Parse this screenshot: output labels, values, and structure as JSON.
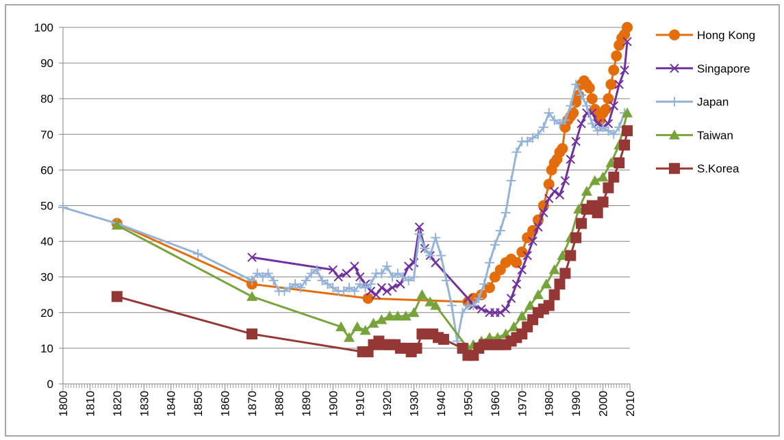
{
  "chart_data": {
    "type": "line",
    "xlim": [
      1800,
      2010
    ],
    "xticks": [
      1800,
      1810,
      1820,
      1830,
      1840,
      1850,
      1860,
      1870,
      1880,
      1890,
      1900,
      1910,
      1920,
      1930,
      1940,
      1950,
      1960,
      1970,
      1980,
      1990,
      2000,
      2010
    ],
    "ylim": [
      0,
      100
    ],
    "yticks": [
      0,
      10,
      20,
      30,
      40,
      50,
      60,
      70,
      80,
      90,
      100
    ],
    "grid": true,
    "legend": "right",
    "series": [
      {
        "name": "Hong Kong",
        "color": "#e46c0a",
        "marker": "circle",
        "x": [
          1820,
          1870,
          1913,
          1950,
          1952,
          1955,
          1958,
          1960,
          1962,
          1964,
          1966,
          1968,
          1970,
          1972,
          1974,
          1976,
          1978,
          1980,
          1981,
          1982,
          1983,
          1984,
          1985,
          1986,
          1987,
          1988,
          1989,
          1990,
          1991,
          1992,
          1993,
          1994,
          1995,
          1996,
          1997,
          1998,
          1999,
          2000,
          2001,
          2002,
          2003,
          2004,
          2005,
          2006,
          2007,
          2008,
          2009
        ],
        "values": [
          45,
          28,
          24,
          23,
          24,
          25,
          27,
          30,
          32,
          34,
          35,
          34,
          37,
          41,
          43,
          46,
          50,
          56,
          60,
          62,
          63,
          65,
          66,
          72,
          74,
          75,
          76,
          79,
          81,
          84,
          85,
          84,
          83,
          80,
          77,
          76,
          74,
          76,
          77,
          80,
          84,
          88,
          92,
          95,
          97,
          98,
          100
        ]
      },
      {
        "name": "Singapore",
        "color": "#7030a0",
        "marker": "cross",
        "x": [
          1870,
          1900,
          1902,
          1905,
          1908,
          1910,
          1912,
          1914,
          1916,
          1918,
          1920,
          1922,
          1925,
          1928,
          1930,
          1932,
          1934,
          1936,
          1938,
          1950,
          1952,
          1955,
          1958,
          1960,
          1962,
          1964,
          1966,
          1968,
          1970,
          1972,
          1974,
          1976,
          1978,
          1980,
          1982,
          1984,
          1986,
          1988,
          1990,
          1992,
          1994,
          1996,
          1998,
          2000,
          2002,
          2004,
          2006,
          2008,
          2009
        ],
        "values": [
          35.5,
          32,
          30,
          31,
          33,
          30,
          28,
          26,
          25,
          27,
          26,
          27,
          28,
          33,
          34,
          44,
          38,
          36,
          34,
          24,
          22,
          21,
          20,
          20,
          20,
          21,
          24,
          28,
          32,
          36,
          40,
          44,
          48,
          52,
          54,
          53,
          57,
          63,
          68,
          73,
          76,
          76,
          73,
          72,
          73,
          78,
          84,
          88,
          96
        ]
      },
      {
        "name": "Japan",
        "color": "#95b3d7",
        "marker": "plus",
        "x": [
          1800,
          1820,
          1850,
          1870,
          1872,
          1874,
          1876,
          1878,
          1880,
          1882,
          1884,
          1886,
          1888,
          1890,
          1892,
          1894,
          1896,
          1898,
          1900,
          1902,
          1904,
          1906,
          1908,
          1910,
          1912,
          1914,
          1916,
          1918,
          1920,
          1922,
          1924,
          1926,
          1928,
          1930,
          1932,
          1934,
          1936,
          1938,
          1940,
          1942,
          1944,
          1946,
          1948,
          1950,
          1952,
          1954,
          1956,
          1958,
          1960,
          1962,
          1964,
          1966,
          1968,
          1970,
          1972,
          1974,
          1976,
          1978,
          1980,
          1982,
          1984,
          1986,
          1988,
          1990,
          1992,
          1994,
          1996,
          1998,
          2000,
          2002,
          2004,
          2006,
          2008
        ],
        "values": [
          49.5,
          45,
          36.5,
          29,
          31,
          30,
          31,
          29,
          26,
          26,
          27,
          28,
          27,
          29,
          31,
          32,
          29,
          28,
          27,
          26,
          26,
          27,
          26,
          28,
          27,
          28,
          31,
          31,
          33,
          30,
          31,
          30,
          29,
          30,
          42,
          38,
          36,
          41,
          36,
          29,
          22,
          12,
          20,
          22,
          22,
          24,
          28,
          34,
          39,
          43,
          48,
          57,
          65,
          68,
          68,
          69,
          70,
          72,
          76,
          74,
          73,
          74,
          78,
          84,
          81,
          78,
          73,
          71,
          72,
          71,
          70,
          72,
          76
        ]
      },
      {
        "name": "Taiwan",
        "color": "#77a33b",
        "marker": "triangle",
        "x": [
          1820,
          1870,
          1903,
          1906,
          1909,
          1912,
          1915,
          1918,
          1921,
          1924,
          1927,
          1930,
          1933,
          1936,
          1938,
          1950,
          1952,
          1955,
          1958,
          1961,
          1964,
          1967,
          1970,
          1973,
          1976,
          1979,
          1982,
          1985,
          1988,
          1991,
          1994,
          1997,
          2000,
          2003,
          2006,
          2009
        ],
        "values": [
          44.5,
          24.5,
          16,
          13,
          16,
          15,
          17,
          18,
          19,
          19,
          19,
          20,
          25,
          23,
          22,
          10,
          11,
          12,
          13,
          13,
          14,
          16,
          19,
          22,
          25,
          28,
          32,
          36,
          41,
          49,
          54,
          57,
          58,
          62,
          67,
          76
        ]
      },
      {
        "name": "S.Korea",
        "color": "#953735",
        "marker": "square",
        "x": [
          1820,
          1870,
          1911,
          1913,
          1915,
          1917,
          1919,
          1921,
          1923,
          1925,
          1927,
          1929,
          1931,
          1933,
          1935,
          1937,
          1939,
          1941,
          1948,
          1950,
          1952,
          1954,
          1956,
          1958,
          1960,
          1962,
          1964,
          1966,
          1968,
          1970,
          1972,
          1974,
          1976,
          1978,
          1980,
          1982,
          1984,
          1986,
          1988,
          1990,
          1992,
          1994,
          1996,
          1998,
          2000,
          2002,
          2004,
          2006,
          2008,
          2009
        ],
        "values": [
          24.5,
          14,
          9,
          9,
          11,
          12,
          11,
          11,
          11,
          10,
          10,
          9,
          10,
          14,
          14,
          14,
          13,
          12.5,
          10,
          8,
          8,
          10,
          11,
          11,
          11,
          11,
          11,
          12,
          13,
          14,
          16,
          18,
          20,
          21,
          22,
          25,
          28,
          31,
          36,
          41,
          45,
          49,
          50,
          48,
          51,
          55,
          58,
          62,
          67,
          71
        ]
      }
    ]
  }
}
